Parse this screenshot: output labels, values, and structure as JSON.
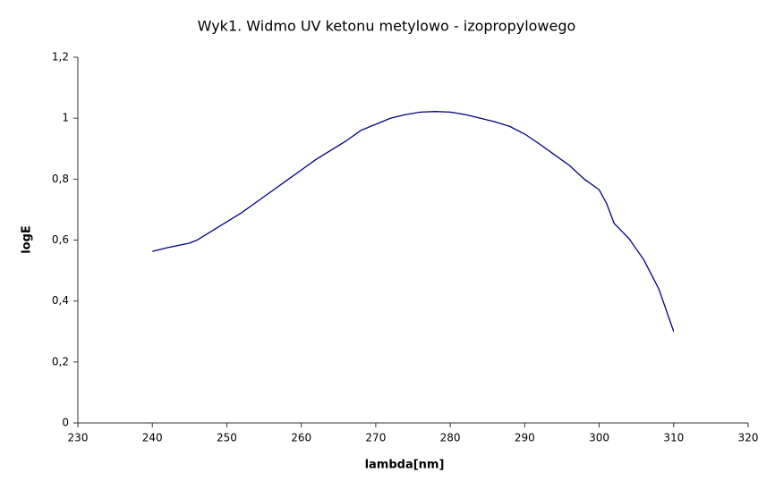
{
  "chart_data": {
    "type": "line",
    "title": "Wyk1. Widmo UV ketonu metylowo - izopropylowego",
    "x_label": "lambda[nm]",
    "y_label": "logE",
    "x": [
      240,
      242,
      244,
      245,
      246,
      248,
      250,
      252,
      254,
      256,
      258,
      260,
      262,
      264,
      266,
      268,
      270,
      272,
      274,
      276,
      278,
      280,
      282,
      284,
      286,
      288,
      290,
      292,
      294,
      296,
      298,
      300,
      301,
      302,
      304,
      306,
      308,
      310
    ],
    "series": [
      {
        "name": "logE",
        "color": "#000080",
        "values": [
          0.563,
          0.575,
          0.585,
          0.59,
          0.6,
          0.63,
          0.66,
          0.69,
          0.725,
          0.76,
          0.795,
          0.83,
          0.865,
          0.895,
          0.925,
          0.96,
          0.98,
          1.0,
          1.012,
          1.02,
          1.022,
          1.02,
          1.012,
          1.0,
          0.988,
          0.973,
          0.948,
          0.915,
          0.88,
          0.845,
          0.8,
          0.765,
          0.72,
          0.655,
          0.605,
          0.535,
          0.44,
          0.3
        ]
      }
    ],
    "xlim": [
      230,
      320
    ],
    "xticks": [
      230,
      240,
      250,
      260,
      270,
      280,
      290,
      300,
      310,
      320
    ],
    "ylim": [
      0,
      1.2
    ],
    "yticks": [
      0,
      {
        "value": 0.2,
        "label": "0,2"
      },
      {
        "value": 0.4,
        "label": "0,4"
      },
      {
        "value": 0.6,
        "label": "0,6"
      },
      {
        "value": 0.8,
        "label": "0,8"
      },
      1,
      {
        "value": 1.2,
        "label": "1,2"
      }
    ],
    "grid": false
  }
}
